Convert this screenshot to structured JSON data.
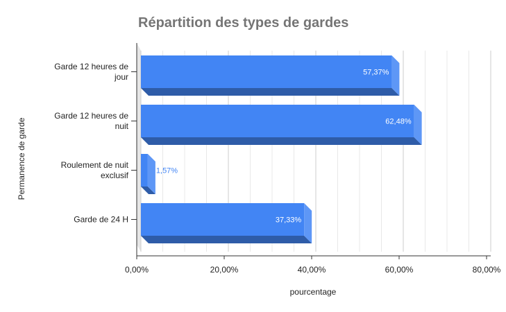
{
  "chart_data": {
    "type": "bar",
    "orientation": "horizontal",
    "style": "3d",
    "title": "Répartition des types de gardes",
    "xlabel": "pourcentage",
    "ylabel": "Permanence de garde",
    "categories": [
      [
        "Garde 12 heures de",
        "jour"
      ],
      [
        "Garde 12 heures de",
        "nuit"
      ],
      [
        "Roulement de nuit",
        "exclusif"
      ],
      [
        "Garde de 24 H"
      ]
    ],
    "values": [
      57.37,
      62.48,
      1.57,
      37.33
    ],
    "data_labels": [
      "57,37%",
      "62,48%",
      "1,57%",
      "37,33%"
    ],
    "xlim": [
      0,
      80
    ],
    "xticks": [
      0,
      20,
      40,
      60,
      80
    ],
    "xtick_labels": [
      "0,00%",
      "20,00%",
      "40,00%",
      "60,00%",
      "80,00%"
    ],
    "grid": true,
    "colors": {
      "front": "#4285f4",
      "top": "#5e97f6",
      "side": "#2e5ca8",
      "grid": "#d9d9d9",
      "wall": "#e6e6e6",
      "title": "#757575"
    }
  }
}
